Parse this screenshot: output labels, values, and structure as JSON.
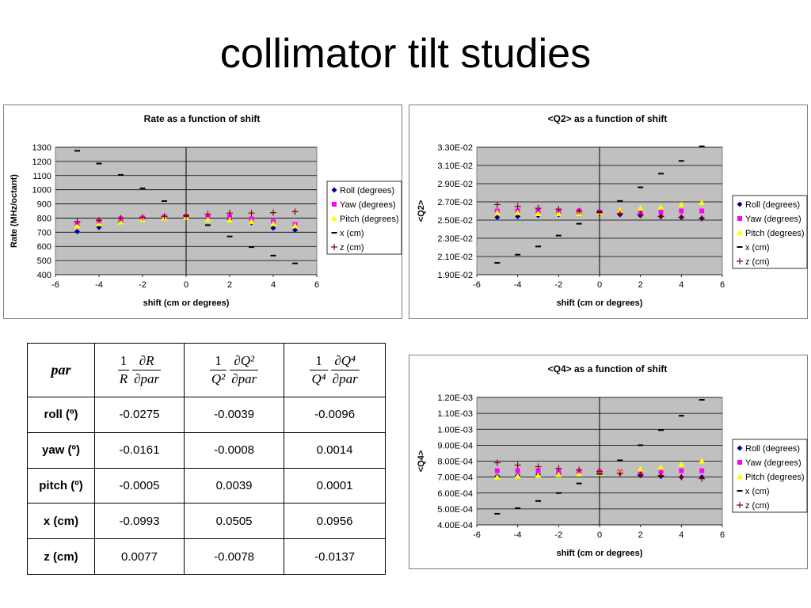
{
  "slide": {
    "title": "collimator tilt studies"
  },
  "table": {
    "header": {
      "par": "par",
      "col1": {
        "lead_num": "1",
        "lead_den": "R",
        "num": "∂R",
        "den": "∂par"
      },
      "col2": {
        "lead_num": "1",
        "lead_den": "Q²",
        "num": "∂Q²",
        "den": "∂par"
      },
      "col3": {
        "lead_num": "1",
        "lead_den": "Q⁴",
        "num": "∂Q⁴",
        "den": "∂par"
      }
    },
    "rows": [
      {
        "label": "roll (º)",
        "values": [
          "-0.0275",
          "-0.0039",
          "-0.0096"
        ]
      },
      {
        "label": "yaw (º)",
        "values": [
          "-0.0161",
          "-0.0008",
          "0.0014"
        ]
      },
      {
        "label": "pitch (º)",
        "values": [
          "-0.0005",
          "0.0039",
          "0.0001"
        ]
      },
      {
        "label": "x (cm)",
        "values": [
          "-0.0993",
          "0.0505",
          "0.0956"
        ]
      },
      {
        "label": "z (cm)",
        "values": [
          "0.0077",
          "-0.0078",
          "-0.0137"
        ]
      }
    ]
  },
  "chart_data": [
    {
      "type": "scatter",
      "title": "Rate as a function of shift",
      "xlabel": "shift (cm or degrees)",
      "ylabel": "Rate (MHz/octant)",
      "xlim": [
        -6,
        6
      ],
      "ylim": [
        400,
        1300
      ],
      "xticks": [
        "-6",
        "-4",
        "-2",
        "0",
        "2",
        "4",
        "6"
      ],
      "yticks": [
        "400",
        "500",
        "600",
        "700",
        "800",
        "900",
        "1000",
        "1100",
        "1200",
        "1300"
      ],
      "grid": true,
      "legend_position": "right",
      "series": [
        {
          "name": "Roll (degrees)",
          "marker": "diamond",
          "color": "#000080",
          "x": [
            -5,
            -4,
            -3,
            -2,
            -1,
            0,
            1,
            2,
            3,
            4,
            5
          ],
          "y": [
            705,
            735,
            770,
            795,
            808,
            812,
            800,
            790,
            768,
            730,
            715
          ]
        },
        {
          "name": "Yaw (degrees)",
          "marker": "square",
          "color": "#ff00ff",
          "x": [
            -5,
            -4,
            -3,
            -2,
            -1,
            0,
            1,
            2,
            3,
            4,
            5
          ],
          "y": [
            755,
            775,
            795,
            800,
            808,
            812,
            810,
            810,
            795,
            775,
            755
          ]
        },
        {
          "name": "Pitch (degrees)",
          "marker": "triangle",
          "color": "#ffff00",
          "x": [
            -5,
            -4,
            -3,
            -2,
            -1,
            0,
            1,
            2,
            3,
            4,
            5
          ],
          "y": [
            745,
            760,
            770,
            790,
            800,
            805,
            790,
            785,
            775,
            760,
            745
          ]
        },
        {
          "name": "x (cm)",
          "marker": "dash",
          "color": "#000000",
          "x": [
            -5,
            -4,
            -3,
            -2,
            -1,
            0,
            1,
            2,
            3,
            4,
            5
          ],
          "y": [
            1275,
            1185,
            1105,
            1010,
            920,
            815,
            750,
            670,
            595,
            535,
            480
          ]
        },
        {
          "name": "z (cm)",
          "marker": "plus",
          "color": "#8b0000",
          "x": [
            -5,
            -4,
            -3,
            -2,
            -1,
            0,
            1,
            2,
            3,
            4,
            5
          ],
          "y": [
            775,
            785,
            800,
            805,
            812,
            818,
            828,
            835,
            835,
            838,
            845
          ]
        }
      ]
    },
    {
      "type": "scatter",
      "title": "<Q2> as a function of shift",
      "xlabel": "shift (cm or degrees)",
      "ylabel": "<Q2>",
      "xlim": [
        -6,
        6
      ],
      "ylim": [
        0.019,
        0.033
      ],
      "xticks": [
        "-6",
        "-4",
        "-2",
        "0",
        "2",
        "4",
        "6"
      ],
      "yticks": [
        "1.90E-02",
        "2.10E-02",
        "2.30E-02",
        "2.50E-02",
        "2.70E-02",
        "2.90E-02",
        "3.10E-02",
        "3.30E-02"
      ],
      "grid": true,
      "legend_position": "right",
      "series": [
        {
          "name": "Roll (degrees)",
          "marker": "diamond",
          "color": "#000080",
          "x": [
            -5,
            -4,
            -3,
            -2,
            -1,
            0,
            1,
            2,
            3,
            4,
            5
          ],
          "y": [
            0.0253,
            0.0254,
            0.0255,
            0.0256,
            0.0257,
            0.0257,
            0.0256,
            0.0255,
            0.0254,
            0.0253,
            0.0252
          ]
        },
        {
          "name": "Yaw (degrees)",
          "marker": "square",
          "color": "#ff00ff",
          "x": [
            -5,
            -4,
            -3,
            -2,
            -1,
            0,
            1,
            2,
            3,
            4,
            5
          ],
          "y": [
            0.026,
            0.026,
            0.026,
            0.026,
            0.026,
            0.0259,
            0.0259,
            0.0259,
            0.0259,
            0.026,
            0.026
          ]
        },
        {
          "name": "Pitch (degrees)",
          "marker": "triangle",
          "color": "#ffff00",
          "x": [
            -5,
            -4,
            -3,
            -2,
            -1,
            0,
            1,
            2,
            3,
            4,
            5
          ],
          "y": [
            0.0258,
            0.0258,
            0.0257,
            0.0257,
            0.0257,
            0.0258,
            0.0261,
            0.0263,
            0.0264,
            0.0267,
            0.0269
          ]
        },
        {
          "name": "x (cm)",
          "marker": "dash",
          "color": "#000000",
          "x": [
            -5,
            -4,
            -3,
            -2,
            -1,
            0,
            1,
            2,
            3,
            4,
            5
          ],
          "y": [
            0.0203,
            0.0212,
            0.0221,
            0.0233,
            0.0246,
            0.0259,
            0.0271,
            0.0286,
            0.0301,
            0.0315,
            0.0331
          ]
        },
        {
          "name": "z (cm)",
          "marker": "plus",
          "color": "#8b0000",
          "x": [
            -5,
            -4,
            -3,
            -2,
            -1,
            0,
            1,
            2,
            3,
            4,
            5
          ],
          "y": [
            0.0267,
            0.0265,
            0.0263,
            0.0262,
            0.026,
            0.0258,
            0.0257,
            0.0256,
            0.0254,
            0.0253,
            0.0252
          ]
        }
      ]
    },
    {
      "type": "scatter",
      "title": "<Q4> as a function of shift",
      "xlabel": "shift (cm or degrees)",
      "ylabel": "<Q4>",
      "xlim": [
        -6,
        6
      ],
      "ylim": [
        0.0004,
        0.0012
      ],
      "xticks": [
        "-6",
        "-4",
        "-2",
        "0",
        "2",
        "4",
        "6"
      ],
      "yticks": [
        "4.00E-04",
        "5.00E-04",
        "6.00E-04",
        "7.00E-04",
        "8.00E-04",
        "9.00E-04",
        "1.00E-03",
        "1.10E-03",
        "1.20E-03"
      ],
      "grid": true,
      "legend_position": "right",
      "series": [
        {
          "name": "Roll (degrees)",
          "marker": "diamond",
          "color": "#000080",
          "x": [
            -5,
            -4,
            -3,
            -2,
            -1,
            0,
            1,
            2,
            3,
            4,
            5
          ],
          "y": [
            0.000705,
            0.00071,
            0.000715,
            0.00072,
            0.000725,
            0.00073,
            0.000725,
            0.00071,
            0.000705,
            0.0007,
            0.0007
          ]
        },
        {
          "name": "Yaw (degrees)",
          "marker": "square",
          "color": "#ff00ff",
          "x": [
            -5,
            -4,
            -3,
            -2,
            -1,
            0,
            1,
            2,
            3,
            4,
            5
          ],
          "y": [
            0.00074,
            0.00074,
            0.00074,
            0.000735,
            0.000735,
            0.000735,
            0.000735,
            0.000735,
            0.000735,
            0.00074,
            0.00074
          ]
        },
        {
          "name": "Pitch (degrees)",
          "marker": "triangle",
          "color": "#ffff00",
          "x": [
            -5,
            -4,
            -3,
            -2,
            -1,
            0,
            1,
            2,
            3,
            4,
            5
          ],
          "y": [
            0.0007,
            0.000705,
            0.00071,
            0.000715,
            0.00072,
            0.000725,
            0.000735,
            0.00075,
            0.00076,
            0.00078,
            0.0008
          ]
        },
        {
          "name": "x (cm)",
          "marker": "dash",
          "color": "#000000",
          "x": [
            -5,
            -4,
            -3,
            -2,
            -1,
            0,
            1,
            2,
            3,
            4,
            5
          ],
          "y": [
            0.00047,
            0.000505,
            0.00055,
            0.0006,
            0.00066,
            0.00072,
            0.000805,
            0.0009,
            0.000995,
            0.001085,
            0.001185
          ]
        },
        {
          "name": "z (cm)",
          "marker": "plus",
          "color": "#8b0000",
          "x": [
            -5,
            -4,
            -3,
            -2,
            -1,
            0,
            1,
            2,
            3,
            4,
            5
          ],
          "y": [
            0.00079,
            0.000775,
            0.000765,
            0.000755,
            0.000745,
            0.000735,
            0.000725,
            0.000715,
            0.00071,
            0.0007,
            0.00069
          ]
        }
      ]
    }
  ]
}
